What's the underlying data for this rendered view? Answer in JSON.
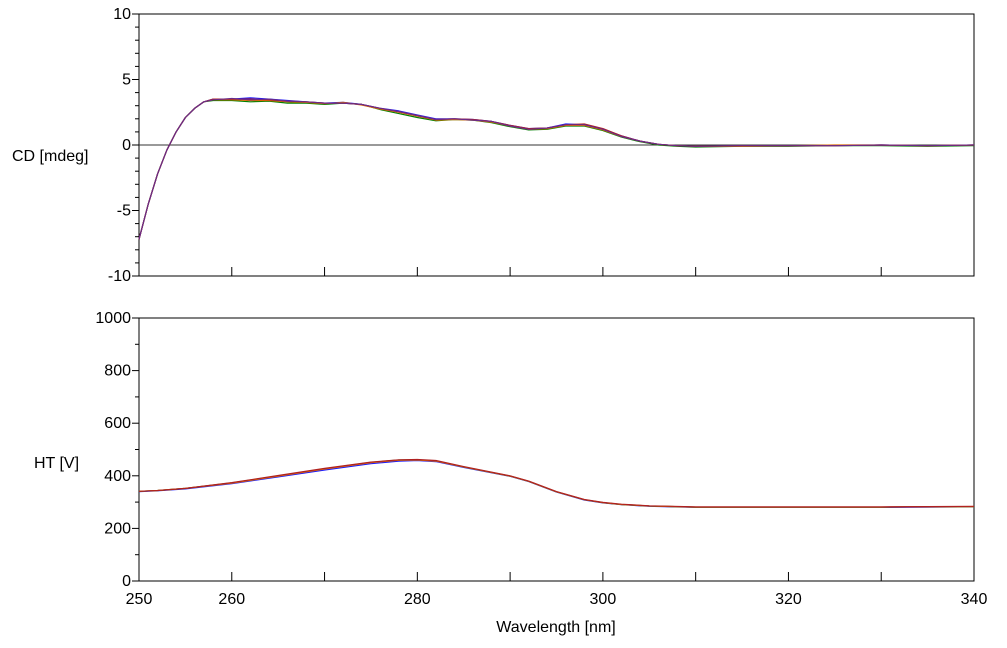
{
  "chart_data": [
    {
      "type": "line",
      "title": "",
      "ylabel": "CD [mdeg]",
      "xlabel": "",
      "xlim": [
        250,
        340
      ],
      "ylim": [
        -10,
        10
      ],
      "yticks": [
        10,
        5,
        0,
        -5,
        -10
      ],
      "ytick_labels": [
        "10",
        "5",
        "0",
        "-5",
        "-10"
      ],
      "y_minor_step": 1,
      "x_major_step": 20,
      "x_minor_step": 10,
      "zero_line": true,
      "series": [
        {
          "color": "#1a1aff",
          "x": [
            250,
            251,
            252,
            253,
            254,
            255,
            256,
            257,
            258,
            260,
            262,
            264,
            266,
            268,
            270,
            272,
            274,
            276,
            278,
            280,
            282,
            284,
            286,
            288,
            290,
            292,
            294,
            296,
            298,
            300,
            302,
            304,
            306,
            308,
            310,
            315,
            320,
            325,
            330,
            335,
            340
          ],
          "y": [
            -7.2,
            -4.5,
            -2.2,
            -0.4,
            1.0,
            2.1,
            2.8,
            3.3,
            3.5,
            3.5,
            3.6,
            3.5,
            3.4,
            3.3,
            3.2,
            3.25,
            3.1,
            2.8,
            2.6,
            2.3,
            2.0,
            2.0,
            1.95,
            1.8,
            1.5,
            1.25,
            1.3,
            1.6,
            1.55,
            1.2,
            0.7,
            0.3,
            0.05,
            -0.05,
            -0.1,
            -0.05,
            -0.05,
            -0.05,
            0.0,
            -0.05,
            0.0
          ]
        },
        {
          "color": "#008000",
          "x": [
            250,
            251,
            252,
            253,
            254,
            255,
            256,
            257,
            258,
            260,
            262,
            264,
            266,
            268,
            270,
            272,
            274,
            276,
            278,
            280,
            282,
            284,
            286,
            288,
            290,
            292,
            294,
            296,
            298,
            300,
            302,
            304,
            306,
            308,
            310,
            315,
            320,
            325,
            330,
            335,
            340
          ],
          "y": [
            -7.2,
            -4.5,
            -2.2,
            -0.4,
            1.0,
            2.1,
            2.8,
            3.3,
            3.4,
            3.4,
            3.3,
            3.35,
            3.2,
            3.2,
            3.1,
            3.2,
            3.1,
            2.7,
            2.4,
            2.1,
            1.85,
            1.95,
            1.9,
            1.7,
            1.4,
            1.15,
            1.2,
            1.45,
            1.45,
            1.1,
            0.6,
            0.25,
            0.0,
            -0.1,
            -0.15,
            -0.1,
            -0.1,
            -0.05,
            -0.05,
            -0.1,
            -0.05
          ]
        },
        {
          "color": "#e07000",
          "x": [
            250,
            251,
            252,
            253,
            254,
            255,
            256,
            257,
            258,
            260,
            262,
            264,
            266,
            268,
            270,
            272,
            274,
            276,
            278,
            280,
            282,
            284,
            286,
            288,
            290,
            292,
            294,
            296,
            298,
            300,
            302,
            304,
            306,
            308,
            310,
            315,
            320,
            325,
            330,
            335,
            340
          ],
          "y": [
            -7.2,
            -4.5,
            -2.2,
            -0.4,
            1.0,
            2.1,
            2.8,
            3.3,
            3.45,
            3.45,
            3.4,
            3.4,
            3.3,
            3.25,
            3.15,
            3.25,
            3.05,
            2.75,
            2.5,
            2.2,
            1.9,
            1.95,
            1.9,
            1.75,
            1.45,
            1.2,
            1.25,
            1.5,
            1.5,
            1.15,
            0.65,
            0.3,
            0.05,
            -0.05,
            -0.1,
            -0.1,
            -0.05,
            0.0,
            0.0,
            -0.05,
            0.0
          ]
        },
        {
          "color": "#b02020",
          "x": [
            250,
            251,
            252,
            253,
            254,
            255,
            256,
            257,
            258,
            260,
            262,
            264,
            266,
            268,
            270,
            272,
            274,
            276,
            278,
            280,
            282,
            284,
            286,
            288,
            290,
            292,
            294,
            296,
            298,
            300,
            302,
            304,
            306,
            308,
            310,
            315,
            320,
            325,
            330,
            335,
            340
          ],
          "y": [
            -7.2,
            -4.5,
            -2.2,
            -0.4,
            1.0,
            2.1,
            2.8,
            3.3,
            3.5,
            3.5,
            3.5,
            3.45,
            3.35,
            3.3,
            3.2,
            3.2,
            3.1,
            2.8,
            2.55,
            2.25,
            1.95,
            2.0,
            1.95,
            1.8,
            1.5,
            1.25,
            1.3,
            1.55,
            1.6,
            1.25,
            0.7,
            0.3,
            0.05,
            -0.05,
            -0.1,
            -0.05,
            -0.05,
            -0.05,
            0.0,
            -0.05,
            0.0
          ]
        },
        {
          "color": "#6a2a8a",
          "x": [
            250,
            251,
            252,
            253,
            254,
            255,
            256,
            257,
            258,
            260,
            262,
            264,
            266,
            268,
            270,
            272,
            274,
            276,
            278,
            280,
            282,
            284,
            286,
            288,
            290,
            292,
            294,
            296,
            298,
            300,
            302,
            304,
            306,
            308,
            310,
            315,
            320,
            325,
            330,
            335,
            340
          ],
          "y": [
            -7.2,
            -4.5,
            -2.2,
            -0.4,
            1.0,
            2.1,
            2.8,
            3.3,
            3.45,
            3.55,
            3.45,
            3.5,
            3.35,
            3.3,
            3.2,
            3.2,
            3.1,
            2.8,
            2.55,
            2.25,
            1.95,
            2.0,
            1.9,
            1.8,
            1.45,
            1.2,
            1.3,
            1.55,
            1.55,
            1.2,
            0.65,
            0.3,
            0.05,
            -0.05,
            -0.1,
            -0.05,
            -0.05,
            -0.05,
            0.0,
            -0.05,
            0.0
          ]
        }
      ]
    },
    {
      "type": "line",
      "title": "",
      "ylabel": "HT [V]",
      "xlabel": "Wavelength [nm]",
      "xlim": [
        250,
        340
      ],
      "ylim": [
        0,
        1000
      ],
      "yticks": [
        1000,
        800,
        600,
        400,
        200,
        0
      ],
      "ytick_labels": [
        "1000",
        "800",
        "600",
        "400",
        "200",
        "0"
      ],
      "y_minor_step": 100,
      "xticks": [
        250,
        260,
        280,
        300,
        320,
        340
      ],
      "xtick_labels": [
        "250",
        "260",
        "280",
        "300",
        "320",
        "340"
      ],
      "x_major_step": 20,
      "x_minor_step": 10,
      "zero_line": false,
      "series": [
        {
          "color": "#1a1aff",
          "x": [
            250,
            252,
            255,
            260,
            265,
            270,
            275,
            278,
            280,
            282,
            285,
            290,
            292,
            295,
            298,
            300,
            302,
            305,
            310,
            315,
            320,
            325,
            330,
            335,
            340
          ],
          "y": [
            340,
            343,
            350,
            370,
            396,
            422,
            446,
            456,
            458,
            454,
            432,
            398,
            378,
            338,
            308,
            297,
            290,
            284,
            280,
            280,
            280,
            280,
            280,
            281,
            282
          ]
        },
        {
          "color": "#008000",
          "x": [
            250,
            252,
            255,
            260,
            265,
            270,
            275,
            278,
            280,
            282,
            285,
            290,
            292,
            295,
            298,
            300,
            302,
            305,
            310,
            315,
            320,
            325,
            330,
            335,
            340
          ],
          "y": [
            341,
            344,
            352,
            373,
            400,
            427,
            451,
            460,
            461,
            457,
            434,
            399,
            379,
            339,
            309,
            298,
            291,
            285,
            281,
            281,
            281,
            281,
            281,
            282,
            283
          ]
        },
        {
          "color": "#e07000",
          "x": [
            250,
            252,
            255,
            260,
            265,
            270,
            275,
            278,
            280,
            282,
            285,
            290,
            292,
            295,
            298,
            300,
            302,
            305,
            310,
            315,
            320,
            325,
            330,
            335,
            340
          ],
          "y": [
            341,
            344,
            352,
            372,
            399,
            426,
            450,
            459,
            460,
            456,
            434,
            399,
            379,
            339,
            309,
            298,
            291,
            285,
            281,
            281,
            281,
            281,
            281,
            282,
            283
          ]
        },
        {
          "color": "#b02020",
          "x": [
            250,
            252,
            255,
            260,
            265,
            270,
            275,
            278,
            280,
            282,
            285,
            290,
            292,
            295,
            298,
            300,
            302,
            305,
            310,
            315,
            320,
            325,
            330,
            335,
            340
          ],
          "y": [
            341,
            344,
            352,
            374,
            401,
            428,
            452,
            461,
            462,
            458,
            435,
            400,
            380,
            340,
            310,
            299,
            292,
            286,
            282,
            282,
            282,
            282,
            282,
            283,
            284
          ]
        }
      ]
    }
  ]
}
